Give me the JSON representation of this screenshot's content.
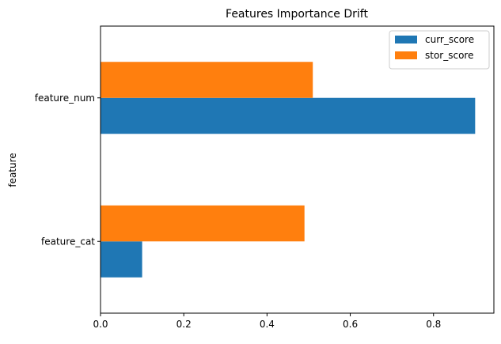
{
  "chart_data": {
    "type": "bar",
    "orientation": "horizontal",
    "title": "Features Importance Drift",
    "xlabel": "",
    "ylabel": "feature",
    "categories": [
      "feature_cat",
      "feature_num"
    ],
    "series": [
      {
        "name": "curr_score",
        "color": "#1f77b4",
        "values": [
          0.1,
          0.9
        ]
      },
      {
        "name": "stor_score",
        "color": "#ff7f0e",
        "values": [
          0.49,
          0.51
        ]
      }
    ],
    "xlim": [
      0,
      0.945
    ],
    "xticks": [
      "0.0",
      "0.2",
      "0.4",
      "0.6",
      "0.8"
    ],
    "grid": false,
    "legend_position": "top-right"
  }
}
